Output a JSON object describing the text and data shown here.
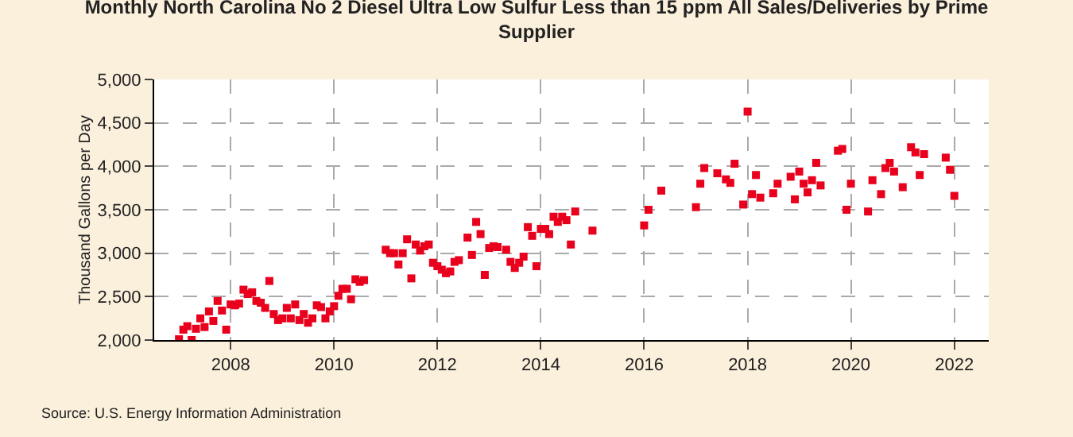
{
  "chart_data": {
    "type": "scatter",
    "title": "Monthly North Carolina No 2 Diesel Ultra Low Sulfur Less than 15 ppm All Sales/Deliveries by Prime Supplier",
    "ylabel": "Thousand Gallons per Day",
    "x": [
      "2007-01",
      "2007-02",
      "2007-03",
      "2007-04",
      "2007-05",
      "2007-06",
      "2007-07",
      "2007-08",
      "2007-09",
      "2007-10",
      "2007-11",
      "2007-12",
      "2008-01",
      "2008-02",
      "2008-03",
      "2008-04",
      "2008-05",
      "2008-06",
      "2008-07",
      "2008-08",
      "2008-09",
      "2008-10",
      "2008-11",
      "2008-12",
      "2009-01",
      "2009-02",
      "2009-03",
      "2009-04",
      "2009-05",
      "2009-06",
      "2009-07",
      "2009-08",
      "2009-09",
      "2009-10",
      "2009-11",
      "2009-12",
      "2010-01",
      "2010-02",
      "2010-03",
      "2010-04",
      "2010-05",
      "2010-06",
      "2010-07",
      "2010-08",
      "2011-01",
      "2011-02",
      "2011-03",
      "2011-04",
      "2011-05",
      "2011-06",
      "2011-07",
      "2011-08",
      "2011-09",
      "2011-10",
      "2011-11",
      "2011-12",
      "2012-01",
      "2012-02",
      "2012-03",
      "2012-04",
      "2012-05",
      "2012-06",
      "2012-08",
      "2012-09",
      "2012-10",
      "2012-11",
      "2012-12",
      "2013-01",
      "2013-02",
      "2013-03",
      "2013-05",
      "2013-06",
      "2013-07",
      "2013-08",
      "2013-09",
      "2013-10",
      "2013-11",
      "2013-12",
      "2014-01",
      "2014-02",
      "2014-03",
      "2014-04",
      "2014-05",
      "2014-06",
      "2014-07",
      "2014-08",
      "2014-09",
      "2015-01",
      "2016-01",
      "2016-02",
      "2016-05",
      "2017-01",
      "2017-02",
      "2017-03",
      "2017-06",
      "2017-08",
      "2017-09",
      "2017-10",
      "2017-12",
      "2018-01",
      "2018-02",
      "2018-03",
      "2018-04",
      "2018-07",
      "2018-08",
      "2018-11",
      "2018-12",
      "2019-01",
      "2019-02",
      "2019-03",
      "2019-04",
      "2019-05",
      "2019-06",
      "2019-10",
      "2019-11",
      "2019-12",
      "2020-01",
      "2020-05",
      "2020-06",
      "2020-08",
      "2020-09",
      "2020-10",
      "2020-11",
      "2021-01",
      "2021-03",
      "2021-04",
      "2021-05",
      "2021-06",
      "2021-11",
      "2021-12",
      "2022-01"
    ],
    "series": [
      {
        "color": "#e8001c",
        "values": [
          2010,
          2120,
          2160,
          2000,
          2130,
          2250,
          2150,
          2330,
          2220,
          2450,
          2340,
          2120,
          2410,
          2400,
          2420,
          2580,
          2530,
          2550,
          2450,
          2430,
          2370,
          2680,
          2300,
          2230,
          2250,
          2370,
          2250,
          2410,
          2230,
          2300,
          2200,
          2250,
          2400,
          2380,
          2250,
          2330,
          2390,
          2510,
          2590,
          2590,
          2470,
          2700,
          2670,
          2690,
          3040,
          3000,
          3000,
          2870,
          3000,
          3160,
          2710,
          3100,
          3030,
          3080,
          3100,
          2890,
          2850,
          2810,
          2770,
          2790,
          2900,
          2920,
          3180,
          2980,
          3360,
          3220,
          2750,
          3060,
          3080,
          3070,
          3040,
          2900,
          2830,
          2890,
          2960,
          3300,
          3200,
          2850,
          3280,
          3280,
          3220,
          3420,
          3360,
          3420,
          3380,
          3100,
          3480,
          3260,
          3320,
          3500,
          3720,
          3530,
          3800,
          3980,
          3920,
          3850,
          3810,
          4030,
          3560,
          4630,
          3680,
          3900,
          3640,
          3690,
          3800,
          3880,
          3620,
          3940,
          3800,
          3700,
          3840,
          4040,
          3780,
          4180,
          4200,
          3500,
          3800,
          3480,
          3840,
          3680,
          3980,
          4040,
          3940,
          3760,
          4220,
          4160,
          3900,
          4140,
          4100,
          3960,
          3660
        ]
      }
    ],
    "xlim": [
      "2006-07-10",
      "2022-09-01"
    ],
    "xticks": [
      {
        "value": "2008-01-01",
        "label": "2008"
      },
      {
        "value": "2010-01-01",
        "label": "2010"
      },
      {
        "value": "2012-01-01",
        "label": "2012"
      },
      {
        "value": "2014-01-01",
        "label": "2014"
      },
      {
        "value": "2016-01-01",
        "label": "2016"
      },
      {
        "value": "2018-01-01",
        "label": "2018"
      },
      {
        "value": "2020-01-01",
        "label": "2020"
      },
      {
        "value": "2022-01-01",
        "label": "2022"
      }
    ],
    "ylim": [
      2000,
      5000
    ],
    "yticks": [
      {
        "value": 2000,
        "label": "2,000"
      },
      {
        "value": 2500,
        "label": "2,500"
      },
      {
        "value": 3000,
        "label": "3,000"
      },
      {
        "value": 3500,
        "label": "3,500"
      },
      {
        "value": 4000,
        "label": "4,000"
      },
      {
        "value": 4500,
        "label": "4,500"
      },
      {
        "value": 5000,
        "label": "5,000"
      }
    ],
    "grid": true,
    "marker": "square",
    "annotations": [
      "Source: U.S. Energy Information Administration"
    ]
  }
}
